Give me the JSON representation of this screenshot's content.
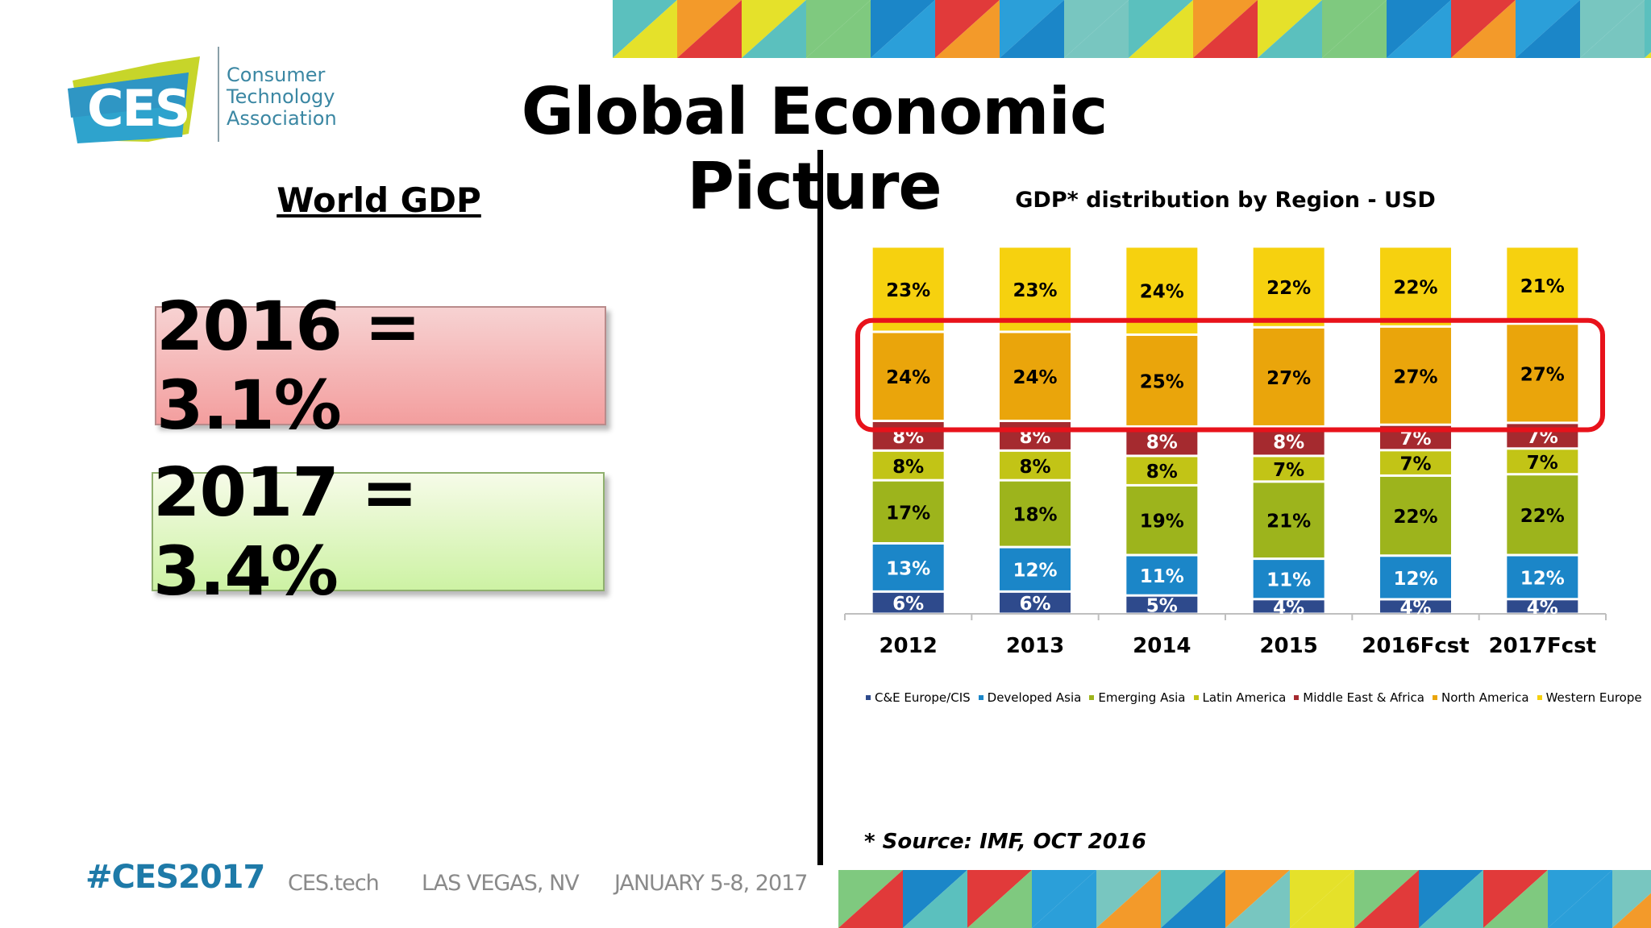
{
  "slide": {
    "title": "Global Economic Picture",
    "left_heading": "World GDP",
    "gdp_2016": "2016 = 3.1%",
    "gdp_2017": "2017 = 3.4%",
    "source_note": "* Source: IMF, OCT 2016"
  },
  "logo": {
    "badge_text": "CES",
    "name_lines": [
      "Consumer",
      "Technology",
      "Association"
    ]
  },
  "footer": {
    "hashtag": "#CES2017",
    "site": "CES.tech",
    "location": "LAS VEGAS, NV",
    "dates": "JANUARY 5-8, 2017"
  },
  "colors": {
    "ce_europe_cis": "#2e4a8c",
    "developed_asia": "#1b86c8",
    "emerging_asia": "#9db41c",
    "latin_america": "#c2c416",
    "middle_east_africa": "#a52a2f",
    "north_america": "#eaa50b",
    "western_europe": "#f6d10f",
    "highlight": "#e8121b",
    "hashtag": "#1e7aa8"
  },
  "chart_data": {
    "type": "bar",
    "stacked": true,
    "title": "GDP* distribution by Region - USD",
    "categories": [
      "2012",
      "2013",
      "2014",
      "2015",
      "2016Fcst",
      "2017Fcst"
    ],
    "series": [
      {
        "name": "C&E Europe/CIS",
        "values": [
          6,
          6,
          5,
          4,
          4,
          4
        ],
        "labels": [
          "6%",
          "6%",
          "5%",
          "4%",
          "4%",
          "4%"
        ]
      },
      {
        "name": "Developed Asia",
        "values": [
          13,
          12,
          11,
          11,
          12,
          12
        ],
        "labels": [
          "13%",
          "12%",
          "11%",
          "11%",
          "12%",
          "12%"
        ]
      },
      {
        "name": "Emerging Asia",
        "values": [
          17,
          18,
          19,
          21,
          22,
          22
        ],
        "labels": [
          "17%",
          "18%",
          "19%",
          "21%",
          "22%",
          "22%"
        ]
      },
      {
        "name": "Latin America",
        "values": [
          8,
          8,
          8,
          7,
          7,
          7
        ],
        "labels": [
          "8%",
          "8%",
          "8%",
          "7%",
          "7%",
          "7%"
        ]
      },
      {
        "name": "Middle East & Africa",
        "values": [
          8,
          8,
          8,
          8,
          7,
          7
        ],
        "labels": [
          "8%",
          "8%",
          "8%",
          "8%",
          "7%",
          "7%"
        ]
      },
      {
        "name": "North America",
        "values": [
          24,
          24,
          25,
          27,
          27,
          27
        ],
        "labels": [
          "24%",
          "24%",
          "25%",
          "27%",
          "27%",
          "27%"
        ]
      },
      {
        "name": "Western Europe",
        "values": [
          23,
          23,
          24,
          22,
          22,
          21
        ],
        "labels": [
          "23%",
          "23%",
          "24%",
          "22%",
          "22%",
          "21%"
        ]
      }
    ],
    "legend_position": "bottom",
    "highlighted_series": "North America",
    "grid": false
  }
}
